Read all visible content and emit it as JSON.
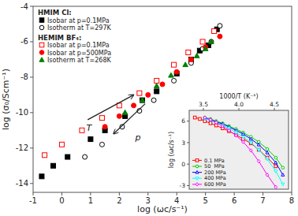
{
  "chart_data": [
    {
      "type": "scatter",
      "xlabel": "log (ωᴄ/s⁻¹)",
      "ylabel": "log (σ₀/Scm⁻¹)",
      "xlim": [
        -1,
        8
      ],
      "ylim": [
        -14.5,
        -4
      ],
      "xticks": [
        -1,
        0,
        1,
        2,
        3,
        4,
        5,
        6,
        7,
        8
      ],
      "yticks": [
        -14,
        -12,
        -10,
        -8,
        -6,
        -4
      ],
      "legend": "upper left",
      "legend_titles": [
        "HMIM Cl:",
        "HEMIM BF₄:"
      ],
      "series": [
        {
          "name": "Isobar at p=0.1MPa",
          "legend_group": 0,
          "color": "black",
          "marker": "square-filled",
          "x": [
            -0.7,
            -0.3,
            0.2,
            1.0,
            1.5,
            2.2,
            2.8,
            3.3,
            4.0,
            4.5,
            4.8,
            5.1,
            5.4
          ],
          "values": [
            -13.6,
            -13.0,
            -12.5,
            -11.5,
            -11.0,
            -10.2,
            -9.3,
            -8.8,
            -7.8,
            -7.0,
            -6.5,
            -6.2,
            -5.3
          ]
        },
        {
          "name": "Isotherm at T=297K",
          "legend_group": 0,
          "color": "black",
          "marker": "circle-open",
          "x": [
            0.8,
            1.4,
            2.1,
            2.7,
            3.2,
            3.9,
            4.5,
            4.9,
            5.2,
            5.5
          ],
          "values": [
            -12.5,
            -11.8,
            -10.8,
            -9.9,
            -9.3,
            -8.2,
            -7.2,
            -6.4,
            -6.0,
            -5.1
          ]
        },
        {
          "name": "Isobar at p=0.1MPa",
          "legend_group": 1,
          "color": "red",
          "marker": "square-open",
          "x": [
            -0.6,
            0.0,
            0.7,
            1.4,
            2.0,
            2.7,
            3.3,
            3.9,
            4.4,
            4.9,
            5.3
          ],
          "values": [
            -12.4,
            -11.8,
            -11.0,
            -10.3,
            -9.6,
            -8.9,
            -8.2,
            -7.3,
            -6.6,
            -6.0,
            -5.4
          ]
        },
        {
          "name": "Isobar at p=500MPa",
          "legend_group": 1,
          "color": "red",
          "marker": "circle-filled",
          "x": [
            1.5,
            2.0,
            2.5,
            3.0,
            3.5,
            4.0,
            4.5,
            5.0,
            5.5
          ],
          "values": [
            -10.8,
            -10.2,
            -9.6,
            -9.0,
            -8.4,
            -7.7,
            -7.0,
            -6.3,
            -5.7
          ]
        },
        {
          "name": "Isotherm at T=268K",
          "legend_group": 1,
          "color": "green",
          "marker": "triangle-up-filled",
          "x": [
            2.2,
            2.8,
            3.3,
            3.8,
            4.3,
            4.7,
            5.0,
            5.2
          ],
          "values": [
            -10.0,
            -9.3,
            -8.5,
            -7.9,
            -7.3,
            -6.8,
            -6.4,
            -6.0
          ]
        }
      ],
      "annotations": [
        {
          "type": "arrow",
          "x": [
            0.9,
            2.5
          ],
          "y": [
            -10.4,
            -9.0
          ]
        },
        {
          "type": "text",
          "text": "T",
          "x": 0.85,
          "y": -11.05
        },
        {
          "type": "arrow",
          "x": [
            2.9,
            1.8
          ],
          "y": [
            -9.5,
            -11.2
          ]
        },
        {
          "type": "text",
          "text": "p",
          "x": 2.55,
          "y": -11.55
        }
      ]
    },
    {
      "type": "line",
      "xlabel": "1000/T (K⁻¹)",
      "ylabel": "log (ωᴄ/s⁻¹)",
      "xlim": [
        3.3,
        4.7
      ],
      "ylim": [
        -3.5,
        7.5
      ],
      "xticks": [
        3.5,
        {
          "value": 4,
          "label": "4.0"
        },
        4.5
      ],
      "yticks": [
        -3,
        0,
        3,
        6
      ],
      "legend": "lower left",
      "series": [
        {
          "name": "0.1 MPa",
          "color": "red",
          "marker": "square-open",
          "line_style": "solid",
          "x": [
            3.38,
            3.45,
            3.52,
            3.6,
            3.68,
            3.77,
            3.86,
            3.96,
            4.06,
            4.17,
            4.28,
            4.4,
            4.52
          ],
          "values": [
            6.5,
            6.3,
            6.0,
            5.7,
            5.4,
            5.0,
            4.6,
            4.1,
            3.5,
            2.9,
            2.0,
            0.9,
            -0.3
          ]
        },
        {
          "name": "50  MPa",
          "color": "#00cc00",
          "marker": "circle-open",
          "line_style": "solid",
          "x": [
            3.52,
            3.6,
            3.68,
            3.77,
            3.86,
            3.96,
            4.06,
            4.17,
            4.28,
            4.4,
            4.52,
            4.62
          ],
          "values": [
            6.5,
            6.3,
            6.0,
            5.7,
            5.3,
            4.9,
            4.4,
            3.8,
            3.1,
            2.1,
            0.9,
            -0.5
          ]
        },
        {
          "name": "200 MPa",
          "color": "blue",
          "marker": "triangle-up-open",
          "line_style": "solid",
          "x": [
            3.52,
            3.6,
            3.68,
            3.77,
            3.86,
            3.96,
            4.06,
            4.17,
            4.28,
            4.4,
            4.52,
            4.62
          ],
          "values": [
            6.4,
            6.2,
            5.9,
            5.6,
            5.2,
            4.7,
            4.2,
            3.5,
            2.7,
            1.6,
            0.2,
            -1.5
          ]
        },
        {
          "name": "400 MPa",
          "color": "cyan",
          "marker": "triangle-down-open",
          "line_style": "solid",
          "x": [
            3.52,
            3.6,
            3.68,
            3.77,
            3.86,
            3.96,
            4.06,
            4.17,
            4.28,
            4.4,
            4.52,
            4.62
          ],
          "values": [
            6.3,
            6.1,
            5.8,
            5.4,
            5.0,
            4.4,
            3.8,
            3.0,
            2.0,
            0.7,
            -1.0,
            -2.8
          ]
        },
        {
          "name": "600 MPa",
          "color": "magenta",
          "marker": "diamond-open",
          "line_style": "solid",
          "x": [
            3.52,
            3.6,
            3.68,
            3.77,
            3.86,
            3.96,
            4.06,
            4.17,
            4.28,
            4.4,
            4.52
          ],
          "values": [
            6.5,
            6.2,
            5.8,
            5.3,
            4.7,
            4.0,
            3.1,
            1.9,
            0.4,
            -1.5,
            -3.2
          ]
        }
      ]
    }
  ]
}
